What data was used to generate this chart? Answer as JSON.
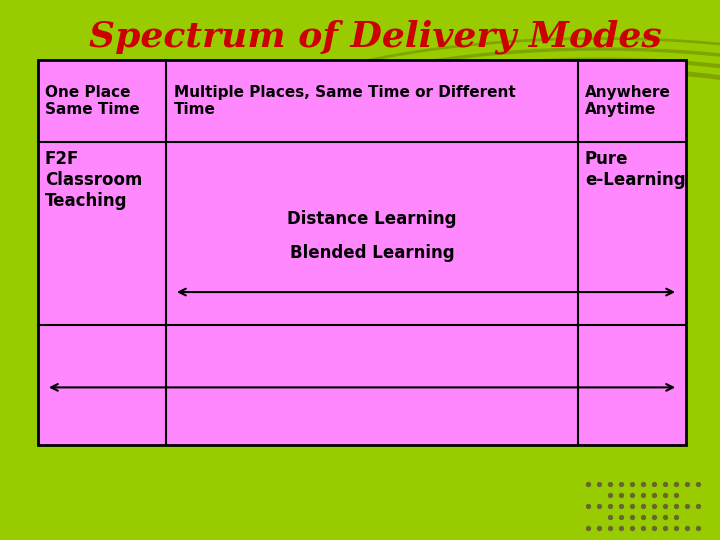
{
  "title": "Spectrum of Delivery Modes",
  "title_color": "#cc0000",
  "title_fontsize": 26,
  "bg_color": "#99cc00",
  "table_bg": "#ff88ff",
  "table_border": "#000000",
  "cell1_header": "One Place\nSame Time",
  "cell2_header": "Multiple Places, Same Time or Different\nTime",
  "cell3_header": "Anywhere\nAnytime",
  "cell1_body": "F2F\nClassroom\nTeaching",
  "cell2_body_line1": "Distance Learning",
  "cell2_body_line2": "Blended Learning",
  "cell3_body": "Pure\ne-Learning",
  "font_color": "#000000",
  "header_fontsize": 11,
  "body_fontsize": 12,
  "arrow_color": "#000000",
  "dot_color": "#666633",
  "swirl_color": "#7a9900"
}
